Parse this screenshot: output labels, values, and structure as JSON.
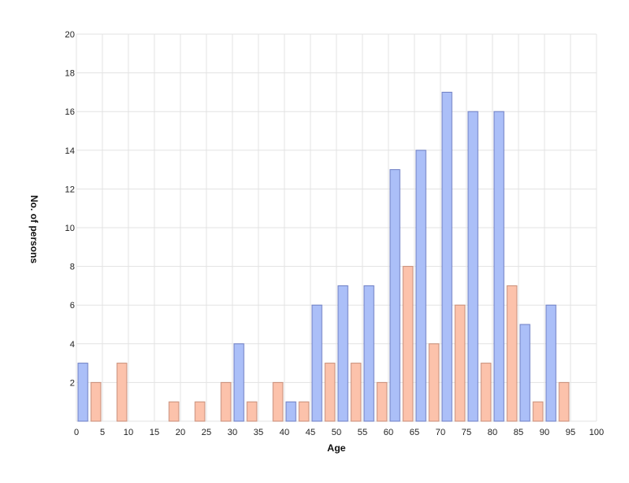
{
  "chart_data": {
    "type": "bar",
    "title": "",
    "xlabel": "Age",
    "ylabel": "No. of persons",
    "xlim": [
      0,
      100
    ],
    "ylim": [
      0,
      20
    ],
    "x_ticks": [
      0,
      5,
      10,
      15,
      20,
      25,
      30,
      35,
      40,
      45,
      50,
      55,
      60,
      65,
      70,
      75,
      80,
      85,
      90,
      95,
      100
    ],
    "y_ticks": [
      2,
      4,
      6,
      8,
      10,
      12,
      14,
      16,
      18,
      20
    ],
    "grid": true,
    "legend": "none",
    "x": [
      0,
      5,
      10,
      15,
      20,
      25,
      30,
      35,
      40,
      45,
      50,
      55,
      60,
      65,
      70,
      75,
      80,
      85,
      90
    ],
    "series": [
      {
        "color": "#abbff8",
        "stroke": "#6f7fc4",
        "values": [
          3,
          0,
          0,
          0,
          0,
          0,
          4,
          0,
          1,
          6,
          7,
          7,
          13,
          14,
          17,
          16,
          16,
          5,
          6
        ]
      },
      {
        "color": "#fcc2ab",
        "stroke": "#c98e78",
        "values": [
          2,
          3,
          0,
          1,
          1,
          2,
          1,
          2,
          1,
          3,
          3,
          2,
          8,
          4,
          6,
          3,
          7,
          1,
          2
        ]
      }
    ]
  }
}
